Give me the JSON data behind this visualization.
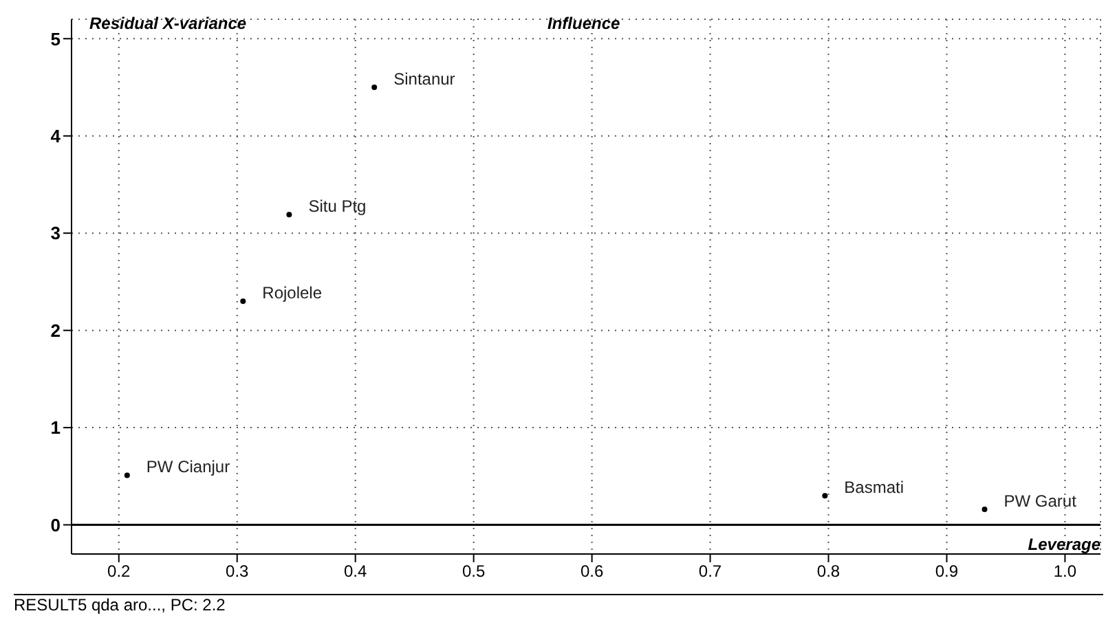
{
  "chart_data": {
    "type": "scatter",
    "title": "Influence",
    "xlabel": "Leverage",
    "ylabel": "Residual X-variance",
    "annotations": [
      "RESULT5 qda aro..., PC: 2.2"
    ],
    "series": [
      {
        "name": "Sintanur",
        "color": "#000000",
        "x": [
          0.416
        ],
        "values": [
          4.5
        ]
      },
      {
        "name": "Situ Ptg",
        "color": "#000000",
        "x": [
          0.344
        ],
        "values": [
          3.19
        ]
      },
      {
        "name": "Rojolele",
        "color": "#000000",
        "x": [
          0.305
        ],
        "values": [
          2.3
        ]
      },
      {
        "name": "PW Cianjur",
        "color": "#000000",
        "x": [
          0.207
        ],
        "values": [
          0.51
        ]
      },
      {
        "name": "Basmati",
        "color": "#000000",
        "x": [
          0.797
        ],
        "values": [
          0.3
        ]
      },
      {
        "name": "PW Garut",
        "color": "#000000",
        "x": [
          0.932
        ],
        "values": [
          0.16
        ]
      }
    ],
    "xlim": [
      0.16,
      1.03
    ],
    "xticks": [
      {
        "value": 0.2,
        "label": "0.2"
      },
      {
        "value": 0.3,
        "label": "0.3"
      },
      {
        "value": 0.4,
        "label": "0.4"
      },
      {
        "value": 0.5,
        "label": "0.5"
      },
      {
        "value": 0.6,
        "label": "0.6"
      },
      {
        "value": 0.7,
        "label": "0.7"
      },
      {
        "value": 0.8,
        "label": "0.8"
      },
      {
        "value": 0.9,
        "label": "0.9"
      },
      {
        "value": 1.0,
        "label": "1.0"
      }
    ],
    "ylim": [
      -0.3,
      5.2
    ],
    "yticks": [
      0,
      1,
      2,
      3,
      4,
      5
    ],
    "ref_lines": [
      {
        "axis": "y",
        "value": 0,
        "color": "#000000"
      }
    ],
    "grid": true,
    "marker": "circle"
  }
}
